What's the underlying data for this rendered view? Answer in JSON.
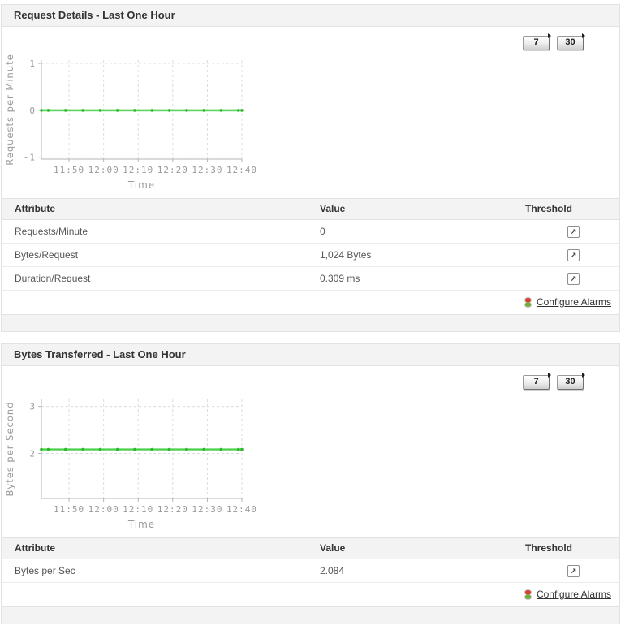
{
  "colors": {
    "line_green": "#4ccf4c",
    "marker_green": "#2eb82e",
    "header_bg": "#f3f3f3",
    "grid": "#dcdcdc",
    "axis": "#b5b5b5",
    "axis_text": "#9a9a9a",
    "link_text": "#333333",
    "alarm_red": "#d8402f",
    "alarm_green": "#6fae3a"
  },
  "icons": {
    "threshold": {
      "name": "open-threshold-popup-arrow",
      "glyph": "↗"
    },
    "alarm": {
      "name": "traffic-light"
    },
    "button_flag": {
      "name": "small-right-triangle"
    }
  },
  "panels": [
    {
      "title": "Request Details - Last One Hour",
      "buttons": [
        {
          "label": "7"
        },
        {
          "label": "30"
        }
      ],
      "table": {
        "headers": [
          "Attribute",
          "Value",
          "Threshold"
        ],
        "rows": [
          {
            "attribute": "Requests/Minute",
            "value": "0"
          },
          {
            "attribute": "Bytes/Request",
            "value": "1,024 Bytes"
          },
          {
            "attribute": "Duration/Request",
            "value": "0.309 ms"
          }
        ]
      },
      "configure_alarms_label": "Configure Alarms"
    },
    {
      "title": "Bytes Transferred - Last One Hour",
      "buttons": [
        {
          "label": "7"
        },
        {
          "label": "30"
        }
      ],
      "table": {
        "headers": [
          "Attribute",
          "Value",
          "Threshold"
        ],
        "rows": [
          {
            "attribute": "Bytes per Sec",
            "value": "2.084"
          }
        ]
      },
      "configure_alarms_label": "Configure Alarms"
    }
  ],
  "chart_data": [
    {
      "type": "line",
      "title": "",
      "xlabel": "Time",
      "ylabel": "Requests per Minute",
      "x_ticks": [
        "11:50",
        "12:00",
        "12:10",
        "12:20",
        "12:30",
        "12:40"
      ],
      "x_range": [
        "11:42",
        "12:40"
      ],
      "y_ticks": [
        1,
        0,
        -1
      ],
      "ylim": [
        -1.04,
        1.07
      ],
      "grid": true,
      "legend": "none",
      "series": [
        {
          "name": "Requests per Minute",
          "color": "#4ccf4c",
          "marker_color": "#2eb82e",
          "points": [
            {
              "t": "11:42",
              "v": 0
            },
            {
              "t": "11:44",
              "v": 0
            },
            {
              "t": "11:49",
              "v": 0
            },
            {
              "t": "11:54",
              "v": 0
            },
            {
              "t": "11:59",
              "v": 0
            },
            {
              "t": "12:04",
              "v": 0
            },
            {
              "t": "12:09",
              "v": 0
            },
            {
              "t": "12:14",
              "v": 0
            },
            {
              "t": "12:19",
              "v": 0
            },
            {
              "t": "12:24",
              "v": 0
            },
            {
              "t": "12:29",
              "v": 0
            },
            {
              "t": "12:34",
              "v": 0
            },
            {
              "t": "12:39",
              "v": 0
            },
            {
              "t": "12:40",
              "v": 0
            }
          ]
        }
      ]
    },
    {
      "type": "line",
      "title": "",
      "xlabel": "Time",
      "ylabel": "Bytes per Second",
      "x_ticks": [
        "11:50",
        "12:00",
        "12:10",
        "12:20",
        "12:30",
        "12:40"
      ],
      "x_range": [
        "11:42",
        "12:40"
      ],
      "y_ticks": [
        3,
        2
      ],
      "ylim": [
        1.04,
        3.15
      ],
      "grid": true,
      "legend": "none",
      "series": [
        {
          "name": "Bytes per Second",
          "color": "#4ccf4c",
          "marker_color": "#2eb82e",
          "points": [
            {
              "t": "11:42",
              "v": 2.084
            },
            {
              "t": "11:44",
              "v": 2.084
            },
            {
              "t": "11:49",
              "v": 2.084
            },
            {
              "t": "11:54",
              "v": 2.084
            },
            {
              "t": "11:59",
              "v": 2.084
            },
            {
              "t": "12:04",
              "v": 2.084
            },
            {
              "t": "12:09",
              "v": 2.084
            },
            {
              "t": "12:14",
              "v": 2.084
            },
            {
              "t": "12:19",
              "v": 2.084
            },
            {
              "t": "12:24",
              "v": 2.084
            },
            {
              "t": "12:29",
              "v": 2.084
            },
            {
              "t": "12:34",
              "v": 2.084
            },
            {
              "t": "12:39",
              "v": 2.084
            },
            {
              "t": "12:40",
              "v": 2.084
            }
          ]
        }
      ]
    }
  ]
}
